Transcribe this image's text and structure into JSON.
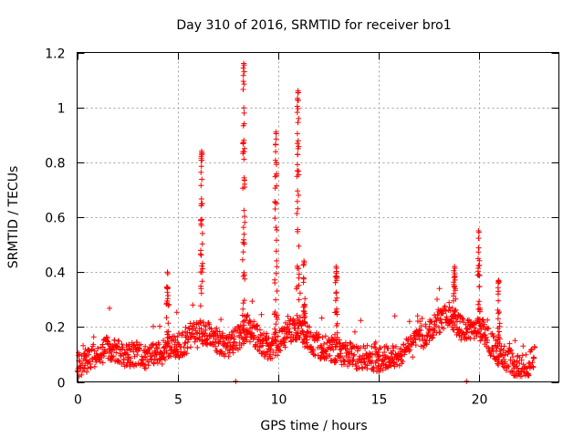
{
  "chart_data": {
    "type": "scatter",
    "title": "Day 310 of 2016, SRMTID for receiver bro1",
    "xlabel": "GPS time / hours",
    "ylabel": "SRMTID / TECUs",
    "xlim": [
      0,
      24
    ],
    "ylim": [
      0,
      1.2
    ],
    "x_ticks": [
      0,
      5,
      10,
      15,
      20
    ],
    "x_tick_labels": [
      "0",
      "5",
      "10",
      "15",
      "20"
    ],
    "y_ticks": [
      0,
      0.2,
      0.4,
      0.6,
      0.8,
      1,
      1.2
    ],
    "y_tick_labels": [
      "0",
      "0.2",
      "0.4",
      "0.6",
      "0.8",
      "1",
      "1.2"
    ],
    "grid": true,
    "marker": "plus",
    "color": "#ff0000",
    "background_profile": [
      [
        0.0,
        0.06
      ],
      [
        0.5,
        0.08
      ],
      [
        1.0,
        0.1
      ],
      [
        1.5,
        0.12
      ],
      [
        2.0,
        0.11
      ],
      [
        2.5,
        0.1
      ],
      [
        3.0,
        0.1
      ],
      [
        3.5,
        0.09
      ],
      [
        4.0,
        0.1
      ],
      [
        4.5,
        0.12
      ],
      [
        5.0,
        0.13
      ],
      [
        5.5,
        0.15
      ],
      [
        6.0,
        0.17
      ],
      [
        6.5,
        0.18
      ],
      [
        7.0,
        0.15
      ],
      [
        7.5,
        0.13
      ],
      [
        8.0,
        0.16
      ],
      [
        8.5,
        0.2
      ],
      [
        9.0,
        0.16
      ],
      [
        9.5,
        0.12
      ],
      [
        10.0,
        0.14
      ],
      [
        10.5,
        0.18
      ],
      [
        11.0,
        0.2
      ],
      [
        11.5,
        0.16
      ],
      [
        12.0,
        0.13
      ],
      [
        12.5,
        0.12
      ],
      [
        13.0,
        0.11
      ],
      [
        13.5,
        0.1
      ],
      [
        14.0,
        0.09
      ],
      [
        14.5,
        0.09
      ],
      [
        15.0,
        0.08
      ],
      [
        15.5,
        0.09
      ],
      [
        16.0,
        0.1
      ],
      [
        16.5,
        0.12
      ],
      [
        17.0,
        0.15
      ],
      [
        17.5,
        0.18
      ],
      [
        18.0,
        0.22
      ],
      [
        18.5,
        0.25
      ],
      [
        19.0,
        0.2
      ],
      [
        19.5,
        0.18
      ],
      [
        20.0,
        0.2
      ],
      [
        20.5,
        0.15
      ],
      [
        21.0,
        0.1
      ],
      [
        21.5,
        0.08
      ],
      [
        22.0,
        0.05
      ],
      [
        22.5,
        0.06
      ],
      [
        22.8,
        0.1
      ]
    ],
    "peaks": [
      {
        "x": 4.5,
        "y": 0.4
      },
      {
        "x": 6.2,
        "y": 0.84
      },
      {
        "x": 8.3,
        "y": 1.16
      },
      {
        "x": 9.9,
        "y": 0.91
      },
      {
        "x": 11.0,
        "y": 1.06
      },
      {
        "x": 11.3,
        "y": 0.44
      },
      {
        "x": 12.9,
        "y": 0.42
      },
      {
        "x": 18.8,
        "y": 0.42
      },
      {
        "x": 20.0,
        "y": 0.55
      },
      {
        "x": 21.0,
        "y": 0.37
      }
    ],
    "outliers": [
      {
        "x": 7.9,
        "y": 0.0
      },
      {
        "x": 19.4,
        "y": 0.0
      }
    ]
  }
}
